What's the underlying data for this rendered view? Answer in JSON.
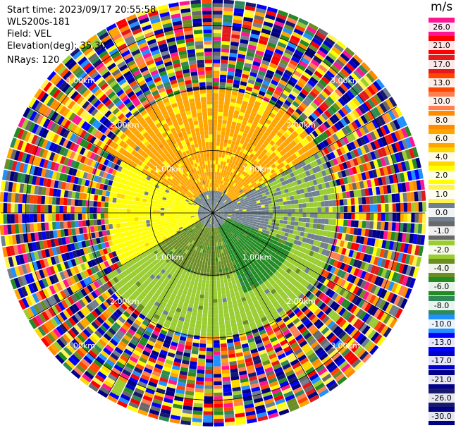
{
  "info": {
    "start_time": "Start time: 2023/09/17 20:55:58",
    "instrument": "WLS200s-181",
    "field": "Field: VEL",
    "elevation": "Elevation(deg): 35.30",
    "nrays": "NRays: 120"
  },
  "colorbar": {
    "unit": "m/s",
    "labels": [
      "26.0",
      "21.0",
      "17.0",
      "13.0",
      "10.0",
      "8.0",
      "6.0",
      "4.0",
      "2.0",
      "1.0",
      "0.0",
      "-1.0",
      "-2.0",
      "-4.0",
      "-6.0",
      "-8.0",
      "-10.0",
      "-13.0",
      "-17.0",
      "-21.0",
      "-26.0",
      "-30.0"
    ],
    "colors": [
      "#ff1493",
      "#ff0000",
      "#e31a1c",
      "#ff4500",
      "#ff7f50",
      "#ff8c00",
      "#ffa500",
      "#ffd700",
      "#ffff00",
      "#fff44f",
      "#708090",
      "#696969",
      "#9acd32",
      "#6b8e23",
      "#228b22",
      "#2e8b57",
      "#1e90ff",
      "#0000ff",
      "#0000cd",
      "#00008b",
      "#191970",
      "#000080"
    ]
  },
  "chart_data": {
    "type": "heatmap",
    "title": "",
    "field": "VEL",
    "units": "m/s",
    "n_rays": 120,
    "elevation_deg": 35.3,
    "range_rings_km": [
      1.0,
      2.0,
      3.0
    ],
    "ring_labels": [
      "1.00km",
      "2.00km",
      "3.00km"
    ],
    "spoke_angles_deg": [
      0,
      30,
      60,
      90,
      120,
      150,
      180,
      210,
      240,
      270,
      300,
      330
    ],
    "max_range_km": 3.4,
    "color_scale": [
      -30,
      -26,
      -21,
      -17,
      -13,
      -10,
      -8,
      -6,
      -4,
      -2,
      -1,
      0,
      1,
      2,
      4,
      6,
      8,
      10,
      13,
      17,
      21,
      26
    ],
    "regions": [
      {
        "sector": "north (300-60 deg)",
        "range_km": [
          0.3,
          1.9
        ],
        "velocity_ms": 6.0
      },
      {
        "sector": "west / northwest",
        "range_km": [
          0.3,
          1.7
        ],
        "velocity_ms": 2.0
      },
      {
        "sector": "east",
        "range_km": [
          0.3,
          0.9
        ],
        "velocity_ms": 0.0
      },
      {
        "sector": "south (120-240 deg)",
        "range_km": [
          0.3,
          1.9
        ],
        "velocity_ms": -4.0
      },
      {
        "sector": "southeast",
        "range_km": [
          0.3,
          1.4
        ],
        "velocity_ms": -6.0
      },
      {
        "sector": "all",
        "range_km": [
          2.0,
          3.4
        ],
        "velocity_ms": "noise"
      }
    ]
  }
}
